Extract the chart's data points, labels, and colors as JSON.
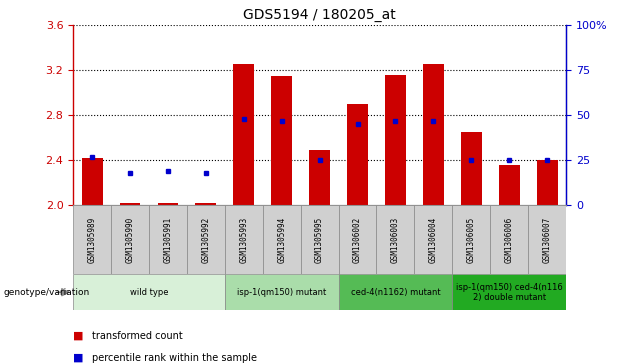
{
  "title": "GDS5194 / 180205_at",
  "samples": [
    "GSM1305989",
    "GSM1305990",
    "GSM1305991",
    "GSM1305992",
    "GSM1305993",
    "GSM1305994",
    "GSM1305995",
    "GSM1306002",
    "GSM1306003",
    "GSM1306004",
    "GSM1306005",
    "GSM1306006",
    "GSM1306007"
  ],
  "transformed_count": [
    2.42,
    2.02,
    2.02,
    2.02,
    3.26,
    3.15,
    2.49,
    2.9,
    3.16,
    3.26,
    2.65,
    2.36,
    2.4
  ],
  "percentile_rank": [
    27,
    18,
    19,
    18,
    48,
    47,
    25,
    45,
    47,
    47,
    25,
    25,
    25
  ],
  "y_min": 2.0,
  "y_max": 3.6,
  "y_ticks": [
    2.0,
    2.4,
    2.8,
    3.2,
    3.6
  ],
  "y2_ticks": [
    0,
    25,
    50,
    75,
    100
  ],
  "bar_color": "#cc0000",
  "dot_color": "#0000cc",
  "groups": [
    {
      "label": "wild type",
      "start": 0,
      "end": 3,
      "color": "#d8f0d8"
    },
    {
      "label": "isp-1(qm150) mutant",
      "start": 4,
      "end": 6,
      "color": "#aaddaa"
    },
    {
      "label": "ced-4(n1162) mutant",
      "start": 7,
      "end": 9,
      "color": "#55bb55"
    },
    {
      "label": "isp-1(qm150) ced-4(n116\n2) double mutant",
      "start": 10,
      "end": 12,
      "color": "#22aa22"
    }
  ],
  "legend_label_bar": "transformed count",
  "legend_label_dot": "percentile rank within the sample",
  "genotype_label": "genotype/variation",
  "plot_bg": "#ffffff",
  "grid_color": "#000000",
  "y_label_color": "#cc0000",
  "y2_label_color": "#0000cc",
  "bar_bottom": 2.0,
  "sample_box_color": "#d0d0d0",
  "sample_box_edge": "#888888"
}
